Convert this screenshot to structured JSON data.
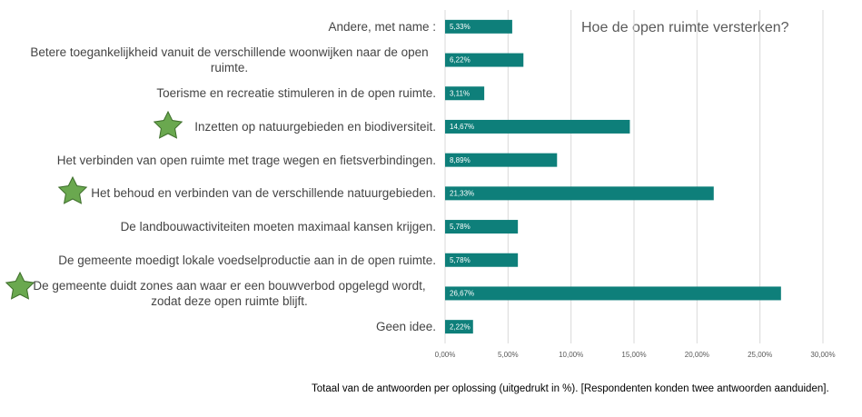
{
  "chart_data": {
    "type": "barh",
    "title": "Hoe de open ruimte versterken?",
    "caption": "Totaal van de antwoorden per oplossing  (uitgedrukt in %). [Respondenten konden twee antwoorden aanduiden].",
    "categories": [
      "Andere, met name :",
      "Betere toegankelijkheid vanuit de verschillende woonwijken naar de open ruimte.",
      "Toerisme en recreatie stimuleren in de open ruimte.",
      "Inzetten op natuurgebieden en biodiversiteit.",
      "Het verbinden van open ruimte met trage wegen en fietsverbindingen.",
      "Het behoud en verbinden van de verschillende natuurgebieden.",
      "De landbouwactiviteiten moeten maximaal kansen krijgen.",
      "De gemeente moedigt lokale voedselproductie aan in de open ruimte.",
      "De gemeente duidt zones aan waar er een bouwverbod opgelegd wordt, zodat deze open ruimte blijft.",
      "Geen idee."
    ],
    "values": [
      5.33,
      6.22,
      3.11,
      14.67,
      8.89,
      21.33,
      5.78,
      5.78,
      26.67,
      2.22
    ],
    "value_labels": [
      "5,33%",
      "6,22%",
      "3,11%",
      "14,67%",
      "8,89%",
      "21,33%",
      "5,78%",
      "5,78%",
      "26,67%",
      "2,22%"
    ],
    "color": "#0e7f7a",
    "xlim": [
      0,
      30
    ],
    "xticks": [
      {
        "value": 0,
        "label": "0,00%"
      },
      {
        "value": 5,
        "label": "5,00%"
      },
      {
        "value": 10,
        "label": "10,00%"
      },
      {
        "value": 15,
        "label": "15,00%"
      },
      {
        "value": 20,
        "label": "20,00%"
      },
      {
        "value": 25,
        "label": "25,00%"
      },
      {
        "value": 30,
        "label": "30,00%"
      }
    ],
    "grid": true
  }
}
